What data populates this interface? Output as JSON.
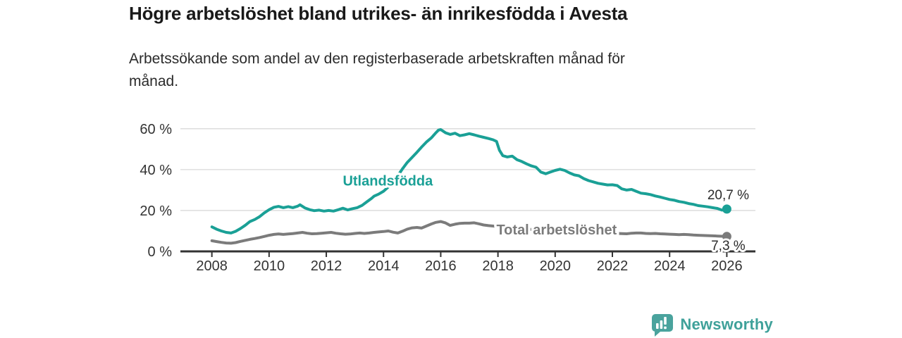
{
  "title": "Högre arbetslöshet bland utrikes- än inrikesfödda i Avesta",
  "subtitle_lines": {
    "0": "Arbetssökande som andel av den registerbaserade arbetskraften månad för",
    "1": "månad."
  },
  "brand": {
    "name": "Newsworthy",
    "icon": "newsworthy-chart-bubble-icon",
    "color": "#3fa19a",
    "icon_color": "#4aa39d"
  },
  "colors": {
    "accent_teal": "#1aa096",
    "series_gray": "#7b7b7b",
    "axis": "#333333",
    "gridline": "#d9d9d9",
    "text_dark": "#2b2b2b"
  },
  "chart_data": {
    "type": "line",
    "title": "Högre arbetslöshet bland utrikes- än inrikesfödda i Avesta",
    "subtitle": "Arbetssökande som andel av den registerbaserade arbetskraften månad för månad.",
    "xlabel": "",
    "ylabel": "",
    "grid": "horizontal",
    "legend_position": "inline-labels",
    "xlim": [
      2006.9,
      2027.0
    ],
    "ylim": [
      0,
      62
    ],
    "x_ticks": [
      2008,
      2010,
      2012,
      2014,
      2016,
      2018,
      2020,
      2022,
      2024,
      2026
    ],
    "x_tick_labels": [
      "2008",
      "2010",
      "2012",
      "2014",
      "2016",
      "2018",
      "2020",
      "2022",
      "2024",
      "2026"
    ],
    "y_ticks": [
      0,
      20,
      40,
      60
    ],
    "y_tick_labels": [
      "0 %",
      "20 %",
      "40 %",
      "60 %"
    ],
    "series": [
      {
        "name": "Utlandsfödda",
        "color": "#1aa096",
        "end_label": "20,7 %",
        "end_value": 20.7,
        "label_anchor": {
          "x": 2014.15,
          "y": 34.6
        },
        "points": [
          [
            2008.0,
            12.0
          ],
          [
            2008.17,
            10.8
          ],
          [
            2008.33,
            10.0
          ],
          [
            2008.5,
            9.3
          ],
          [
            2008.67,
            9.0
          ],
          [
            2008.83,
            9.8
          ],
          [
            2009.0,
            11.2
          ],
          [
            2009.17,
            12.8
          ],
          [
            2009.33,
            14.6
          ],
          [
            2009.5,
            15.6
          ],
          [
            2009.67,
            17.0
          ],
          [
            2009.83,
            18.8
          ],
          [
            2010.0,
            20.4
          ],
          [
            2010.17,
            21.6
          ],
          [
            2010.33,
            22.0
          ],
          [
            2010.5,
            21.4
          ],
          [
            2010.67,
            21.9
          ],
          [
            2010.83,
            21.4
          ],
          [
            2011.0,
            22.1
          ],
          [
            2011.08,
            22.8
          ],
          [
            2011.25,
            21.3
          ],
          [
            2011.42,
            20.4
          ],
          [
            2011.58,
            19.9
          ],
          [
            2011.75,
            20.2
          ],
          [
            2011.92,
            19.7
          ],
          [
            2012.08,
            20.0
          ],
          [
            2012.25,
            19.7
          ],
          [
            2012.42,
            20.4
          ],
          [
            2012.58,
            21.1
          ],
          [
            2012.75,
            20.3
          ],
          [
            2012.92,
            20.9
          ],
          [
            2013.08,
            21.4
          ],
          [
            2013.25,
            22.5
          ],
          [
            2013.42,
            24.3
          ],
          [
            2013.58,
            25.9
          ],
          [
            2013.67,
            27.0
          ],
          [
            2013.83,
            28.0
          ],
          [
            2014.0,
            29.4
          ],
          [
            2014.17,
            31.5
          ],
          [
            2014.33,
            34.0
          ],
          [
            2014.5,
            37.0
          ],
          [
            2014.67,
            40.5
          ],
          [
            2014.83,
            43.5
          ],
          [
            2015.0,
            46.0
          ],
          [
            2015.17,
            48.5
          ],
          [
            2015.33,
            51.0
          ],
          [
            2015.5,
            53.5
          ],
          [
            2015.67,
            55.5
          ],
          [
            2015.83,
            58.0
          ],
          [
            2015.92,
            59.3
          ],
          [
            2016.0,
            59.6
          ],
          [
            2016.17,
            58.0
          ],
          [
            2016.33,
            57.2
          ],
          [
            2016.5,
            57.8
          ],
          [
            2016.67,
            56.6
          ],
          [
            2016.83,
            57.0
          ],
          [
            2017.0,
            57.6
          ],
          [
            2017.17,
            57.0
          ],
          [
            2017.33,
            56.4
          ],
          [
            2017.5,
            55.8
          ],
          [
            2017.67,
            55.2
          ],
          [
            2017.83,
            54.6
          ],
          [
            2017.95,
            53.8
          ],
          [
            2018.05,
            49.5
          ],
          [
            2018.17,
            46.8
          ],
          [
            2018.33,
            46.2
          ],
          [
            2018.5,
            46.6
          ],
          [
            2018.67,
            44.8
          ],
          [
            2018.83,
            44.0
          ],
          [
            2019.0,
            42.8
          ],
          [
            2019.17,
            41.8
          ],
          [
            2019.33,
            41.2
          ],
          [
            2019.5,
            38.8
          ],
          [
            2019.67,
            38.0
          ],
          [
            2019.83,
            38.8
          ],
          [
            2020.0,
            39.6
          ],
          [
            2020.17,
            40.2
          ],
          [
            2020.33,
            39.6
          ],
          [
            2020.5,
            38.4
          ],
          [
            2020.67,
            37.4
          ],
          [
            2020.83,
            37.0
          ],
          [
            2021.0,
            35.6
          ],
          [
            2021.17,
            34.6
          ],
          [
            2021.33,
            34.0
          ],
          [
            2021.5,
            33.3
          ],
          [
            2021.67,
            32.9
          ],
          [
            2021.83,
            32.5
          ],
          [
            2022.0,
            32.6
          ],
          [
            2022.17,
            32.2
          ],
          [
            2022.33,
            30.6
          ],
          [
            2022.5,
            30.0
          ],
          [
            2022.67,
            30.3
          ],
          [
            2022.83,
            29.4
          ],
          [
            2023.0,
            28.5
          ],
          [
            2023.17,
            28.2
          ],
          [
            2023.33,
            27.8
          ],
          [
            2023.5,
            27.1
          ],
          [
            2023.67,
            26.6
          ],
          [
            2023.83,
            26.0
          ],
          [
            2024.0,
            25.4
          ],
          [
            2024.17,
            25.0
          ],
          [
            2024.33,
            24.4
          ],
          [
            2024.5,
            24.0
          ],
          [
            2024.67,
            23.4
          ],
          [
            2024.83,
            23.0
          ],
          [
            2025.0,
            22.4
          ],
          [
            2025.17,
            22.1
          ],
          [
            2025.33,
            21.8
          ],
          [
            2025.5,
            21.4
          ],
          [
            2025.67,
            21.0
          ],
          [
            2025.83,
            20.2
          ],
          [
            2026.0,
            20.7
          ]
        ]
      },
      {
        "name": "Total arbetslöshet",
        "color": "#7b7b7b",
        "end_label": "7,3 %",
        "end_value": 7.3,
        "label_anchor": {
          "x": 2020.05,
          "y": 10.7
        },
        "points": [
          [
            2008.0,
            5.2
          ],
          [
            2008.17,
            4.8
          ],
          [
            2008.33,
            4.4
          ],
          [
            2008.5,
            4.1
          ],
          [
            2008.67,
            4.0
          ],
          [
            2008.83,
            4.3
          ],
          [
            2009.0,
            4.9
          ],
          [
            2009.17,
            5.4
          ],
          [
            2009.33,
            5.9
          ],
          [
            2009.5,
            6.3
          ],
          [
            2009.67,
            6.8
          ],
          [
            2009.83,
            7.3
          ],
          [
            2010.0,
            7.9
          ],
          [
            2010.17,
            8.3
          ],
          [
            2010.33,
            8.5
          ],
          [
            2010.5,
            8.3
          ],
          [
            2010.67,
            8.5
          ],
          [
            2010.83,
            8.7
          ],
          [
            2011.0,
            9.0
          ],
          [
            2011.17,
            9.3
          ],
          [
            2011.33,
            8.9
          ],
          [
            2011.5,
            8.6
          ],
          [
            2011.67,
            8.7
          ],
          [
            2011.83,
            8.9
          ],
          [
            2012.0,
            9.1
          ],
          [
            2012.17,
            9.3
          ],
          [
            2012.33,
            8.9
          ],
          [
            2012.5,
            8.6
          ],
          [
            2012.67,
            8.4
          ],
          [
            2012.83,
            8.5
          ],
          [
            2013.0,
            8.8
          ],
          [
            2013.17,
            9.0
          ],
          [
            2013.33,
            8.8
          ],
          [
            2013.5,
            9.0
          ],
          [
            2013.67,
            9.3
          ],
          [
            2013.83,
            9.5
          ],
          [
            2014.0,
            9.7
          ],
          [
            2014.17,
            10.0
          ],
          [
            2014.33,
            9.4
          ],
          [
            2014.5,
            9.0
          ],
          [
            2014.67,
            9.9
          ],
          [
            2014.83,
            10.9
          ],
          [
            2015.0,
            11.5
          ],
          [
            2015.17,
            11.7
          ],
          [
            2015.33,
            11.4
          ],
          [
            2015.5,
            12.4
          ],
          [
            2015.67,
            13.4
          ],
          [
            2015.83,
            14.2
          ],
          [
            2016.0,
            14.6
          ],
          [
            2016.17,
            13.9
          ],
          [
            2016.33,
            12.7
          ],
          [
            2016.5,
            13.3
          ],
          [
            2016.67,
            13.7
          ],
          [
            2016.83,
            13.8
          ],
          [
            2017.0,
            13.8
          ],
          [
            2017.17,
            14.0
          ],
          [
            2017.33,
            13.5
          ],
          [
            2017.5,
            12.9
          ],
          [
            2017.67,
            12.6
          ],
          [
            2018.0,
            12.2
          ],
          [
            2018.33,
            11.8
          ],
          [
            2018.67,
            11.3
          ],
          [
            2019.0,
            10.9
          ],
          [
            2019.33,
            10.6
          ],
          [
            2019.67,
            10.4
          ],
          [
            2020.0,
            10.8
          ],
          [
            2020.33,
            10.5
          ],
          [
            2020.67,
            10.1
          ],
          [
            2021.0,
            9.7
          ],
          [
            2021.33,
            9.4
          ],
          [
            2021.67,
            9.1
          ],
          [
            2022.0,
            8.9
          ],
          [
            2022.33,
            8.7
          ],
          [
            2022.5,
            8.6
          ],
          [
            2022.67,
            8.9
          ],
          [
            2022.83,
            9.0
          ],
          [
            2023.0,
            9.0
          ],
          [
            2023.17,
            8.8
          ],
          [
            2023.33,
            8.7
          ],
          [
            2023.5,
            8.8
          ],
          [
            2023.67,
            8.6
          ],
          [
            2023.83,
            8.5
          ],
          [
            2024.0,
            8.4
          ],
          [
            2024.17,
            8.3
          ],
          [
            2024.33,
            8.2
          ],
          [
            2024.5,
            8.3
          ],
          [
            2024.67,
            8.2
          ],
          [
            2024.83,
            8.0
          ],
          [
            2025.0,
            7.9
          ],
          [
            2025.17,
            7.8
          ],
          [
            2025.33,
            7.7
          ],
          [
            2025.5,
            7.6
          ],
          [
            2025.67,
            7.5
          ],
          [
            2025.83,
            7.4
          ],
          [
            2026.0,
            7.3
          ]
        ]
      }
    ]
  }
}
